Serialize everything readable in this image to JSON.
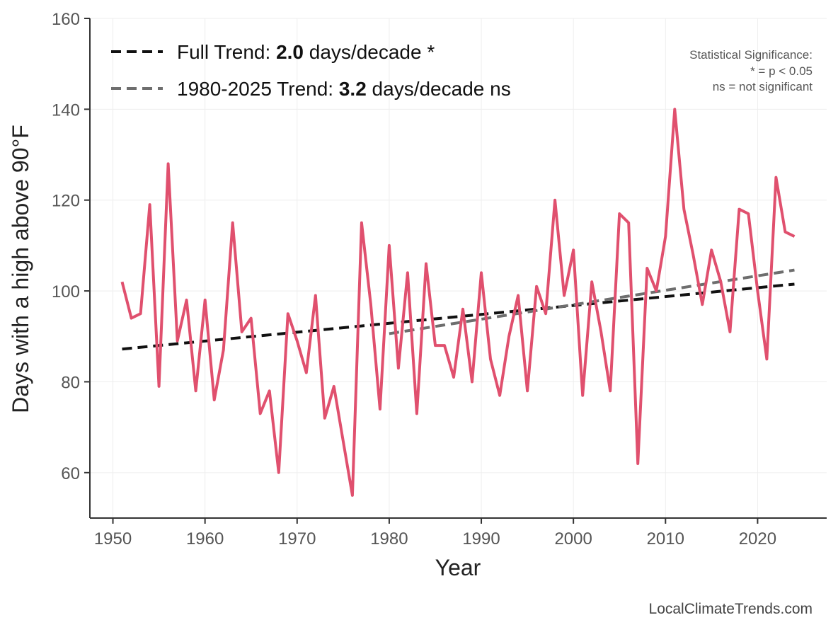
{
  "chart_data": {
    "type": "line",
    "title": "",
    "xlabel": "Year",
    "ylabel": "Days with a high above 90°F",
    "xlim": [
      1947.5,
      2027.5
    ],
    "ylim": [
      50,
      160
    ],
    "xticks": [
      1950,
      1960,
      1970,
      1980,
      1990,
      2000,
      2010,
      2020
    ],
    "yticks": [
      60,
      80,
      100,
      120,
      140,
      160
    ],
    "grid": true,
    "series": [
      {
        "name": "Days above 90°F",
        "color": "#e0506e",
        "x": [
          1951,
          1952,
          1953,
          1954,
          1955,
          1956,
          1957,
          1958,
          1959,
          1960,
          1961,
          1962,
          1963,
          1964,
          1965,
          1966,
          1967,
          1968,
          1969,
          1970,
          1971,
          1972,
          1973,
          1974,
          1975,
          1976,
          1977,
          1978,
          1979,
          1980,
          1981,
          1982,
          1983,
          1984,
          1985,
          1986,
          1987,
          1988,
          1989,
          1990,
          1991,
          1992,
          1993,
          1994,
          1995,
          1996,
          1997,
          1998,
          1999,
          2000,
          2001,
          2002,
          2003,
          2004,
          2005,
          2006,
          2007,
          2008,
          2009,
          2010,
          2011,
          2012,
          2013,
          2014,
          2015,
          2016,
          2017,
          2018,
          2019,
          2020,
          2021,
          2022,
          2023,
          2024
        ],
        "y": [
          102,
          94,
          95,
          119,
          79,
          128,
          89,
          98,
          78,
          98,
          76,
          87,
          115,
          91,
          94,
          73,
          78,
          60,
          95,
          89,
          82,
          99,
          72,
          79,
          67,
          55,
          115,
          97,
          74,
          110,
          83,
          104,
          73,
          106,
          88,
          88,
          81,
          96,
          80,
          104,
          85,
          77,
          90,
          99,
          78,
          101,
          95,
          120,
          99,
          109,
          77,
          102,
          91,
          78,
          117,
          115,
          62,
          105,
          100,
          112,
          140,
          118,
          108,
          97,
          109,
          102,
          91,
          118,
          117,
          100,
          85,
          125,
          113,
          112
        ]
      }
    ],
    "trends": [
      {
        "name": "Full Trend",
        "color": "#111111",
        "x": [
          1951,
          2024
        ],
        "y": [
          87.2,
          101.5
        ],
        "label_prefix": "Full Trend: ",
        "value": "2.0",
        "label_suffix": " days/decade *"
      },
      {
        "name": "1980-2025 Trend",
        "color": "#6e6e6e",
        "x": [
          1980,
          2024
        ],
        "y": [
          90.6,
          104.6
        ],
        "label_prefix": "1980-2025 Trend: ",
        "value": "3.2",
        "label_suffix": " days/decade ns"
      }
    ],
    "annotations": {
      "significance_title": "Statistical Significance:",
      "significance_line1": "* = p < 0.05",
      "significance_line2": "ns = not significant",
      "credit": "LocalClimateTrends.com"
    },
    "legend_position": "top-left"
  }
}
